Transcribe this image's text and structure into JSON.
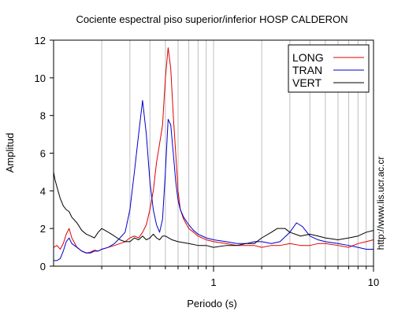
{
  "chart_data": {
    "type": "line",
    "title": "Cociente espectral piso superior/inferior  HOSP CALDERON",
    "xlabel": "Periodo (s)",
    "ylabel": "Amplitud",
    "xscale": "log",
    "xlim": [
      0.1,
      10
    ],
    "ylim": [
      0,
      12
    ],
    "x_ticks": [
      {
        "value": 1,
        "label": "1"
      },
      {
        "value": 10,
        "label": "10"
      }
    ],
    "y_ticks": [
      {
        "value": 0,
        "label": "0"
      },
      {
        "value": 2,
        "label": "2"
      },
      {
        "value": 4,
        "label": "4"
      },
      {
        "value": 6,
        "label": "6"
      },
      {
        "value": 8,
        "label": "8"
      },
      {
        "value": 10,
        "label": "10"
      },
      {
        "value": 12,
        "label": "12"
      }
    ],
    "grid": "vertical",
    "legend_position": "top-right",
    "annotation": "http://www.lis.ucr.ac.cr",
    "series": [
      {
        "name": "LONG",
        "color": "#e00000",
        "x": [
          0.1,
          0.105,
          0.11,
          0.115,
          0.12,
          0.125,
          0.13,
          0.14,
          0.15,
          0.16,
          0.17,
          0.18,
          0.19,
          0.2,
          0.22,
          0.24,
          0.26,
          0.28,
          0.3,
          0.32,
          0.34,
          0.36,
          0.38,
          0.4,
          0.42,
          0.44,
          0.46,
          0.48,
          0.5,
          0.52,
          0.54,
          0.56,
          0.58,
          0.6,
          0.62,
          0.65,
          0.7,
          0.75,
          0.8,
          0.9,
          1.0,
          1.2,
          1.4,
          1.6,
          1.8,
          2.0,
          2.3,
          2.6,
          3.0,
          3.5,
          4.0,
          4.5,
          5.0,
          6.0,
          7.0,
          8.0,
          9.0,
          10.0
        ],
        "y": [
          1.0,
          1.1,
          0.9,
          1.2,
          1.7,
          2.0,
          1.5,
          1.0,
          0.8,
          0.7,
          0.75,
          0.85,
          0.8,
          0.9,
          1.0,
          1.1,
          1.2,
          1.3,
          1.5,
          1.6,
          1.5,
          1.8,
          2.2,
          3.0,
          4.0,
          5.5,
          6.5,
          7.5,
          10.0,
          11.6,
          10.5,
          8.0,
          6.0,
          4.0,
          3.0,
          2.5,
          2.0,
          1.8,
          1.6,
          1.4,
          1.3,
          1.2,
          1.1,
          1.1,
          1.1,
          1.0,
          1.1,
          1.1,
          1.2,
          1.1,
          1.1,
          1.2,
          1.2,
          1.1,
          1.0,
          1.2,
          1.3,
          1.4
        ]
      },
      {
        "name": "TRAN",
        "color": "#0000cc",
        "x": [
          0.1,
          0.105,
          0.11,
          0.115,
          0.12,
          0.125,
          0.13,
          0.14,
          0.15,
          0.16,
          0.17,
          0.18,
          0.19,
          0.2,
          0.22,
          0.24,
          0.26,
          0.28,
          0.3,
          0.32,
          0.34,
          0.36,
          0.38,
          0.4,
          0.42,
          0.44,
          0.46,
          0.48,
          0.5,
          0.52,
          0.54,
          0.56,
          0.58,
          0.6,
          0.62,
          0.65,
          0.7,
          0.75,
          0.8,
          0.9,
          1.0,
          1.2,
          1.4,
          1.6,
          1.8,
          2.0,
          2.3,
          2.6,
          3.0,
          3.3,
          3.6,
          4.0,
          4.5,
          5.0,
          6.0,
          7.0,
          8.0,
          9.0,
          10.0
        ],
        "y": [
          0.3,
          0.3,
          0.4,
          0.8,
          1.3,
          1.5,
          1.2,
          1.0,
          0.8,
          0.7,
          0.7,
          0.8,
          0.8,
          0.9,
          1.0,
          1.2,
          1.5,
          1.8,
          3.0,
          5.0,
          7.0,
          8.8,
          7.0,
          4.5,
          3.0,
          2.2,
          1.8,
          2.5,
          5.0,
          7.8,
          7.5,
          6.0,
          4.5,
          3.5,
          3.0,
          2.6,
          2.2,
          1.9,
          1.7,
          1.5,
          1.4,
          1.3,
          1.2,
          1.2,
          1.3,
          1.3,
          1.2,
          1.3,
          1.8,
          2.3,
          2.1,
          1.6,
          1.4,
          1.3,
          1.2,
          1.1,
          1.0,
          0.9,
          0.9
        ]
      },
      {
        "name": "VERT",
        "color": "#000000",
        "x": [
          0.1,
          0.102,
          0.105,
          0.11,
          0.115,
          0.12,
          0.125,
          0.13,
          0.14,
          0.15,
          0.16,
          0.17,
          0.18,
          0.19,
          0.2,
          0.22,
          0.24,
          0.26,
          0.28,
          0.3,
          0.32,
          0.34,
          0.36,
          0.38,
          0.4,
          0.42,
          0.44,
          0.46,
          0.48,
          0.5,
          0.55,
          0.6,
          0.7,
          0.8,
          0.9,
          1.0,
          1.2,
          1.4,
          1.6,
          1.8,
          2.0,
          2.3,
          2.5,
          2.8,
          3.0,
          3.5,
          4.0,
          4.5,
          5.0,
          6.0,
          7.0,
          8.0,
          9.0,
          10.0
        ],
        "y": [
          5.0,
          4.6,
          4.2,
          3.6,
          3.2,
          3.0,
          2.9,
          2.6,
          2.3,
          1.9,
          1.7,
          1.6,
          1.5,
          1.8,
          2.0,
          1.8,
          1.6,
          1.4,
          1.3,
          1.3,
          1.5,
          1.4,
          1.6,
          1.4,
          1.5,
          1.7,
          1.5,
          1.4,
          1.6,
          1.6,
          1.4,
          1.3,
          1.2,
          1.1,
          1.1,
          1.0,
          1.1,
          1.1,
          1.2,
          1.2,
          1.5,
          1.8,
          2.0,
          2.0,
          1.8,
          1.6,
          1.7,
          1.6,
          1.5,
          1.4,
          1.5,
          1.6,
          1.8,
          1.9
        ]
      }
    ]
  }
}
